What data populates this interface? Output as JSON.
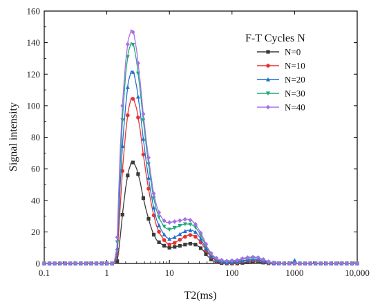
{
  "chart_data": {
    "type": "line",
    "xlabel": "T2(ms)",
    "ylabel": "Signal intensity",
    "x_scale": "log",
    "xlim": [
      0.1,
      10000
    ],
    "ylim": [
      0,
      160
    ],
    "x_ticks": [
      0.1,
      1,
      10,
      100,
      1000,
      10000
    ],
    "x_tick_labels": [
      "0.1",
      "1",
      "10",
      "100",
      "1000",
      "10,000"
    ],
    "y_ticks": [
      0,
      20,
      40,
      60,
      80,
      100,
      120,
      140,
      160
    ],
    "y_tick_labels": [
      "0",
      "20",
      "40",
      "60",
      "80",
      "100",
      "120",
      "140",
      "160"
    ],
    "grid": false,
    "legend_title": "F-T Cycles N",
    "legend_position": "top-right",
    "series": [
      {
        "name": "N=0",
        "color": "#3a3a3a",
        "marker": "square",
        "points": [
          [
            0.1,
            0
          ],
          [
            0.5,
            0
          ],
          [
            1.0,
            0
          ],
          [
            1.3,
            0
          ],
          [
            1.45,
            0
          ],
          [
            1.55,
            8
          ],
          [
            1.65,
            18
          ],
          [
            1.8,
            33
          ],
          [
            2.0,
            48
          ],
          [
            2.2,
            58
          ],
          [
            2.45,
            64
          ],
          [
            2.7,
            64
          ],
          [
            3.0,
            60
          ],
          [
            3.4,
            52
          ],
          [
            3.8,
            42
          ],
          [
            4.3,
            33
          ],
          [
            4.9,
            25
          ],
          [
            5.5,
            19
          ],
          [
            6.2,
            15
          ],
          [
            7.0,
            13
          ],
          [
            8.0,
            11.5
          ],
          [
            9.0,
            10.5
          ],
          [
            10,
            10
          ],
          [
            12,
            10.5
          ],
          [
            14,
            11
          ],
          [
            16,
            11.5
          ],
          [
            18,
            12
          ],
          [
            20,
            12.5
          ],
          [
            23,
            12.5
          ],
          [
            26,
            12
          ],
          [
            30,
            10.5
          ],
          [
            35,
            8
          ],
          [
            40,
            5
          ],
          [
            48,
            2
          ],
          [
            60,
            0.5
          ],
          [
            80,
            0
          ],
          [
            120,
            0
          ],
          [
            160,
            0.5
          ],
          [
            200,
            1
          ],
          [
            250,
            1
          ],
          [
            320,
            0.5
          ],
          [
            400,
            0
          ],
          [
            1000,
            0
          ],
          [
            10000,
            0
          ]
        ]
      },
      {
        "name": "N=10",
        "color": "#e8322e",
        "marker": "circle",
        "points": [
          [
            0.1,
            0
          ],
          [
            0.5,
            0
          ],
          [
            1.0,
            0
          ],
          [
            1.3,
            0
          ],
          [
            1.45,
            3
          ],
          [
            1.55,
            20
          ],
          [
            1.65,
            38
          ],
          [
            1.8,
            62
          ],
          [
            2.0,
            83
          ],
          [
            2.2,
            97
          ],
          [
            2.45,
            105
          ],
          [
            2.7,
            104
          ],
          [
            3.0,
            98
          ],
          [
            3.4,
            85
          ],
          [
            3.8,
            70
          ],
          [
            4.3,
            55
          ],
          [
            4.9,
            42
          ],
          [
            5.5,
            32
          ],
          [
            6.2,
            24
          ],
          [
            7.0,
            19
          ],
          [
            8.0,
            15.5
          ],
          [
            9.0,
            13
          ],
          [
            10,
            12
          ],
          [
            12,
            13
          ],
          [
            14,
            14.5
          ],
          [
            16,
            16
          ],
          [
            18,
            17
          ],
          [
            20,
            18
          ],
          [
            23,
            18
          ],
          [
            26,
            17
          ],
          [
            30,
            14.5
          ],
          [
            35,
            11
          ],
          [
            40,
            7
          ],
          [
            48,
            3.5
          ],
          [
            60,
            1
          ],
          [
            80,
            0.3
          ],
          [
            120,
            0.5
          ],
          [
            160,
            1.5
          ],
          [
            200,
            2
          ],
          [
            250,
            2
          ],
          [
            320,
            1
          ],
          [
            400,
            0
          ],
          [
            1000,
            0
          ],
          [
            10000,
            0
          ]
        ]
      },
      {
        "name": "N=20",
        "color": "#1f6fd6",
        "marker": "triangle-up",
        "points": [
          [
            0.1,
            0
          ],
          [
            0.5,
            0
          ],
          [
            1.0,
            0
          ],
          [
            1.3,
            0
          ],
          [
            1.45,
            5
          ],
          [
            1.55,
            30
          ],
          [
            1.65,
            52
          ],
          [
            1.8,
            78
          ],
          [
            2.0,
            100
          ],
          [
            2.2,
            115
          ],
          [
            2.45,
            122
          ],
          [
            2.7,
            121
          ],
          [
            3.0,
            112
          ],
          [
            3.4,
            97
          ],
          [
            3.8,
            80
          ],
          [
            4.3,
            63
          ],
          [
            4.9,
            48
          ],
          [
            5.5,
            37
          ],
          [
            6.2,
            28
          ],
          [
            7.0,
            23
          ],
          [
            8.0,
            19
          ],
          [
            9.0,
            16.5
          ],
          [
            10,
            15.5
          ],
          [
            12,
            16.5
          ],
          [
            14,
            18
          ],
          [
            16,
            19.5
          ],
          [
            18,
            20.5
          ],
          [
            20,
            21
          ],
          [
            23,
            21
          ],
          [
            26,
            20
          ],
          [
            30,
            17
          ],
          [
            35,
            12.5
          ],
          [
            40,
            8
          ],
          [
            48,
            4
          ],
          [
            60,
            1.5
          ],
          [
            80,
            0.5
          ],
          [
            120,
            1
          ],
          [
            160,
            2
          ],
          [
            200,
            2.5
          ],
          [
            250,
            2.5
          ],
          [
            320,
            1.5
          ],
          [
            400,
            0.3
          ],
          [
            600,
            0
          ],
          [
            900,
            0
          ],
          [
            1000,
            2
          ],
          [
            1100,
            0
          ],
          [
            10000,
            0
          ]
        ]
      },
      {
        "name": "N=30",
        "color": "#1faa78",
        "marker": "triangle-down",
        "points": [
          [
            0.1,
            0
          ],
          [
            0.5,
            0
          ],
          [
            1.0,
            0
          ],
          [
            1.3,
            0
          ],
          [
            1.45,
            8
          ],
          [
            1.55,
            38
          ],
          [
            1.65,
            65
          ],
          [
            1.8,
            95
          ],
          [
            2.0,
            120
          ],
          [
            2.2,
            134
          ],
          [
            2.45,
            140
          ],
          [
            2.7,
            138
          ],
          [
            3.0,
            128
          ],
          [
            3.4,
            110
          ],
          [
            3.8,
            92
          ],
          [
            4.3,
            73
          ],
          [
            4.9,
            56
          ],
          [
            5.5,
            43
          ],
          [
            6.2,
            34
          ],
          [
            7.0,
            28
          ],
          [
            8.0,
            24
          ],
          [
            9.0,
            22
          ],
          [
            10,
            21.5
          ],
          [
            12,
            22.5
          ],
          [
            14,
            23.5
          ],
          [
            16,
            24.5
          ],
          [
            18,
            25
          ],
          [
            20,
            25
          ],
          [
            23,
            24.5
          ],
          [
            26,
            23
          ],
          [
            30,
            19.5
          ],
          [
            35,
            14.5
          ],
          [
            40,
            9.5
          ],
          [
            48,
            5
          ],
          [
            60,
            2
          ],
          [
            80,
            1
          ],
          [
            120,
            1.5
          ],
          [
            160,
            3
          ],
          [
            200,
            3.5
          ],
          [
            250,
            3.5
          ],
          [
            320,
            2
          ],
          [
            400,
            0.5
          ],
          [
            600,
            0
          ],
          [
            10000,
            0
          ]
        ]
      },
      {
        "name": "N=40",
        "color": "#a46ee8",
        "marker": "diamond",
        "points": [
          [
            0.1,
            0
          ],
          [
            0.5,
            0
          ],
          [
            1.0,
            0
          ],
          [
            1.3,
            0
          ],
          [
            1.45,
            10
          ],
          [
            1.55,
            46
          ],
          [
            1.65,
            75
          ],
          [
            1.8,
            104
          ],
          [
            2.0,
            128
          ],
          [
            2.2,
            142
          ],
          [
            2.45,
            148
          ],
          [
            2.7,
            146
          ],
          [
            3.0,
            135
          ],
          [
            3.4,
            116
          ],
          [
            3.8,
            96
          ],
          [
            4.3,
            77
          ],
          [
            4.9,
            60
          ],
          [
            5.5,
            46
          ],
          [
            6.2,
            37
          ],
          [
            7.0,
            31
          ],
          [
            8.0,
            27.5
          ],
          [
            9.0,
            26
          ],
          [
            10,
            26
          ],
          [
            12,
            26.5
          ],
          [
            14,
            27
          ],
          [
            16,
            27.5
          ],
          [
            18,
            28
          ],
          [
            20,
            28
          ],
          [
            23,
            27
          ],
          [
            26,
            25
          ],
          [
            30,
            21
          ],
          [
            35,
            16
          ],
          [
            40,
            10.5
          ],
          [
            48,
            5.5
          ],
          [
            60,
            2.5
          ],
          [
            80,
            1.5
          ],
          [
            120,
            2
          ],
          [
            160,
            3.5
          ],
          [
            200,
            4
          ],
          [
            250,
            4
          ],
          [
            320,
            2.5
          ],
          [
            400,
            0.8
          ],
          [
            600,
            0
          ],
          [
            10000,
            0
          ]
        ]
      }
    ]
  }
}
